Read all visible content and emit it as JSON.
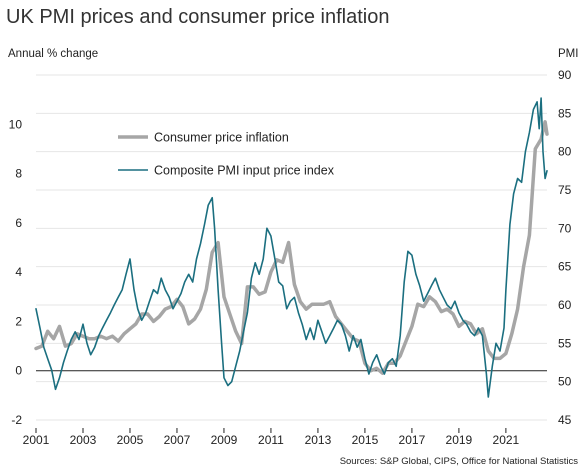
{
  "title": "UK PMI prices and consumer price inflation",
  "source": "Sources: S&P Global, CIPS, Office for National Statistics",
  "colors": {
    "cpi": "#a6a6a6",
    "pmi": "#1b6f80",
    "grid": "#e6e6e6",
    "axis": "#222222"
  },
  "chart_data": {
    "type": "line",
    "left_axis": {
      "label": "Annual % change",
      "ylim": [
        -2,
        12
      ],
      "ticks": [
        -2,
        0,
        2,
        4,
        6,
        8,
        10
      ]
    },
    "right_axis": {
      "label": "PMI",
      "ylim": [
        45,
        90
      ],
      "ticks": [
        45,
        50,
        55,
        60,
        65,
        70,
        75,
        80,
        85,
        90
      ]
    },
    "x_axis": {
      "range": [
        2001,
        2022.75
      ],
      "ticks": [
        "2001",
        "2003",
        "2005",
        "2007",
        "2009",
        "2011",
        "2013",
        "2015",
        "2017",
        "2019",
        "2021"
      ]
    },
    "grid": "horizontal",
    "legend": {
      "position": "top-center"
    },
    "series": [
      {
        "name": "Consumer price inflation",
        "axis": "left",
        "color": "#a6a6a6",
        "points": [
          [
            2001.0,
            0.9
          ],
          [
            2001.25,
            1.0
          ],
          [
            2001.5,
            1.6
          ],
          [
            2001.75,
            1.3
          ],
          [
            2002.0,
            1.8
          ],
          [
            2002.25,
            1.0
          ],
          [
            2002.5,
            1.1
          ],
          [
            2002.75,
            1.5
          ],
          [
            2003.0,
            1.4
          ],
          [
            2003.25,
            1.3
          ],
          [
            2003.5,
            1.3
          ],
          [
            2003.75,
            1.4
          ],
          [
            2004.0,
            1.3
          ],
          [
            2004.25,
            1.4
          ],
          [
            2004.5,
            1.2
          ],
          [
            2004.75,
            1.5
          ],
          [
            2005.0,
            1.7
          ],
          [
            2005.25,
            1.9
          ],
          [
            2005.5,
            2.3
          ],
          [
            2005.75,
            2.3
          ],
          [
            2006.0,
            2.0
          ],
          [
            2006.25,
            2.2
          ],
          [
            2006.5,
            2.5
          ],
          [
            2006.75,
            2.6
          ],
          [
            2007.0,
            2.9
          ],
          [
            2007.25,
            2.6
          ],
          [
            2007.5,
            1.9
          ],
          [
            2007.75,
            2.1
          ],
          [
            2008.0,
            2.5
          ],
          [
            2008.25,
            3.3
          ],
          [
            2008.5,
            4.8
          ],
          [
            2008.75,
            5.2
          ],
          [
            2009.0,
            3.0
          ],
          [
            2009.25,
            2.3
          ],
          [
            2009.5,
            1.6
          ],
          [
            2009.75,
            1.1
          ],
          [
            2010.0,
            3.4
          ],
          [
            2010.25,
            3.4
          ],
          [
            2010.5,
            3.1
          ],
          [
            2010.75,
            3.2
          ],
          [
            2011.0,
            4.0
          ],
          [
            2011.25,
            4.5
          ],
          [
            2011.5,
            4.4
          ],
          [
            2011.75,
            5.2
          ],
          [
            2012.0,
            3.5
          ],
          [
            2012.25,
            2.8
          ],
          [
            2012.5,
            2.5
          ],
          [
            2012.75,
            2.7
          ],
          [
            2013.0,
            2.7
          ],
          [
            2013.25,
            2.7
          ],
          [
            2013.5,
            2.8
          ],
          [
            2013.75,
            2.2
          ],
          [
            2014.0,
            1.9
          ],
          [
            2014.25,
            1.6
          ],
          [
            2014.5,
            1.3
          ],
          [
            2014.75,
            1.2
          ],
          [
            2015.0,
            0.3
          ],
          [
            2015.25,
            0.0
          ],
          [
            2015.5,
            0.1
          ],
          [
            2015.75,
            -0.1
          ],
          [
            2016.0,
            0.3
          ],
          [
            2016.25,
            0.3
          ],
          [
            2016.5,
            0.6
          ],
          [
            2016.75,
            1.2
          ],
          [
            2017.0,
            1.8
          ],
          [
            2017.25,
            2.7
          ],
          [
            2017.5,
            2.6
          ],
          [
            2017.75,
            3.0
          ],
          [
            2018.0,
            2.8
          ],
          [
            2018.25,
            2.4
          ],
          [
            2018.5,
            2.5
          ],
          [
            2018.75,
            2.3
          ],
          [
            2019.0,
            1.8
          ],
          [
            2019.25,
            2.0
          ],
          [
            2019.5,
            1.9
          ],
          [
            2019.75,
            1.5
          ],
          [
            2020.0,
            1.7
          ],
          [
            2020.25,
            0.8
          ],
          [
            2020.5,
            0.5
          ],
          [
            2020.75,
            0.5
          ],
          [
            2021.0,
            0.7
          ],
          [
            2021.25,
            1.5
          ],
          [
            2021.5,
            2.5
          ],
          [
            2021.75,
            4.2
          ],
          [
            2022.0,
            5.5
          ],
          [
            2022.25,
            9.0
          ],
          [
            2022.5,
            9.4
          ],
          [
            2022.67,
            10.1
          ],
          [
            2022.75,
            9.6
          ]
        ]
      },
      {
        "name": "Composite PMI input price index",
        "axis": "right",
        "color": "#1b6f80",
        "points": [
          [
            2001.0,
            59.5
          ],
          [
            2001.17,
            57.0
          ],
          [
            2001.33,
            54.5
          ],
          [
            2001.5,
            53.0
          ],
          [
            2001.67,
            51.5
          ],
          [
            2001.83,
            49.0
          ],
          [
            2002.0,
            50.5
          ],
          [
            2002.17,
            52.5
          ],
          [
            2002.33,
            54.0
          ],
          [
            2002.5,
            55.5
          ],
          [
            2002.67,
            56.5
          ],
          [
            2002.83,
            55.5
          ],
          [
            2003.0,
            57.5
          ],
          [
            2003.17,
            55.0
          ],
          [
            2003.33,
            53.5
          ],
          [
            2003.5,
            54.5
          ],
          [
            2003.67,
            56.0
          ],
          [
            2003.83,
            57.0
          ],
          [
            2004.0,
            58.0
          ],
          [
            2004.17,
            59.0
          ],
          [
            2004.33,
            60.0
          ],
          [
            2004.5,
            61.0
          ],
          [
            2004.67,
            62.0
          ],
          [
            2004.83,
            64.0
          ],
          [
            2005.0,
            66.0
          ],
          [
            2005.17,
            62.0
          ],
          [
            2005.33,
            59.5
          ],
          [
            2005.5,
            58.0
          ],
          [
            2005.67,
            59.0
          ],
          [
            2005.83,
            60.5
          ],
          [
            2006.0,
            62.0
          ],
          [
            2006.17,
            61.5
          ],
          [
            2006.33,
            63.5
          ],
          [
            2006.5,
            62.0
          ],
          [
            2006.67,
            61.0
          ],
          [
            2006.83,
            59.5
          ],
          [
            2007.0,
            60.5
          ],
          [
            2007.17,
            61.5
          ],
          [
            2007.33,
            63.0
          ],
          [
            2007.5,
            64.0
          ],
          [
            2007.67,
            63.0
          ],
          [
            2007.83,
            66.0
          ],
          [
            2008.0,
            68.0
          ],
          [
            2008.17,
            70.5
          ],
          [
            2008.33,
            73.0
          ],
          [
            2008.5,
            74.0
          ],
          [
            2008.6,
            70.0
          ],
          [
            2008.75,
            62.0
          ],
          [
            2008.9,
            55.0
          ],
          [
            2009.0,
            50.5
          ],
          [
            2009.17,
            49.5
          ],
          [
            2009.33,
            50.0
          ],
          [
            2009.5,
            52.0
          ],
          [
            2009.67,
            54.0
          ],
          [
            2009.83,
            56.5
          ],
          [
            2010.0,
            59.0
          ],
          [
            2010.17,
            63.5
          ],
          [
            2010.33,
            65.5
          ],
          [
            2010.5,
            64.0
          ],
          [
            2010.67,
            66.0
          ],
          [
            2010.83,
            70.0
          ],
          [
            2011.0,
            69.0
          ],
          [
            2011.17,
            66.0
          ],
          [
            2011.33,
            63.0
          ],
          [
            2011.5,
            62.5
          ],
          [
            2011.67,
            59.5
          ],
          [
            2011.83,
            60.5
          ],
          [
            2012.0,
            61.0
          ],
          [
            2012.17,
            59.0
          ],
          [
            2012.33,
            57.5
          ],
          [
            2012.5,
            55.5
          ],
          [
            2012.67,
            57.0
          ],
          [
            2012.83,
            55.5
          ],
          [
            2013.0,
            58.0
          ],
          [
            2013.17,
            56.5
          ],
          [
            2013.33,
            55.0
          ],
          [
            2013.5,
            56.0
          ],
          [
            2013.67,
            57.0
          ],
          [
            2013.83,
            58.0
          ],
          [
            2014.0,
            57.5
          ],
          [
            2014.17,
            56.0
          ],
          [
            2014.33,
            54.0
          ],
          [
            2014.5,
            56.0
          ],
          [
            2014.67,
            54.5
          ],
          [
            2014.83,
            55.5
          ],
          [
            2015.0,
            53.0
          ],
          [
            2015.17,
            51.0
          ],
          [
            2015.33,
            52.5
          ],
          [
            2015.5,
            53.5
          ],
          [
            2015.67,
            52.0
          ],
          [
            2015.83,
            51.0
          ],
          [
            2016.0,
            52.5
          ],
          [
            2016.17,
            53.0
          ],
          [
            2016.33,
            52.0
          ],
          [
            2016.5,
            56.0
          ],
          [
            2016.67,
            63.0
          ],
          [
            2016.83,
            67.0
          ],
          [
            2017.0,
            66.5
          ],
          [
            2017.17,
            64.0
          ],
          [
            2017.33,
            62.5
          ],
          [
            2017.5,
            60.5
          ],
          [
            2017.67,
            61.5
          ],
          [
            2017.83,
            62.5
          ],
          [
            2018.0,
            63.5
          ],
          [
            2018.17,
            62.0
          ],
          [
            2018.33,
            61.0
          ],
          [
            2018.5,
            60.0
          ],
          [
            2018.67,
            59.5
          ],
          [
            2018.83,
            60.5
          ],
          [
            2019.0,
            59.0
          ],
          [
            2019.17,
            58.0
          ],
          [
            2019.33,
            57.5
          ],
          [
            2019.5,
            56.5
          ],
          [
            2019.67,
            56.0
          ],
          [
            2019.83,
            57.0
          ],
          [
            2020.0,
            56.0
          ],
          [
            2020.17,
            51.0
          ],
          [
            2020.25,
            48.0
          ],
          [
            2020.42,
            52.0
          ],
          [
            2020.58,
            55.0
          ],
          [
            2020.75,
            54.0
          ],
          [
            2020.92,
            57.0
          ],
          [
            2021.0,
            62.0
          ],
          [
            2021.17,
            70.5
          ],
          [
            2021.33,
            74.5
          ],
          [
            2021.5,
            76.5
          ],
          [
            2021.67,
            76.0
          ],
          [
            2021.83,
            80.0
          ],
          [
            2022.0,
            82.5
          ],
          [
            2022.17,
            85.5
          ],
          [
            2022.33,
            86.5
          ],
          [
            2022.42,
            83.0
          ],
          [
            2022.5,
            87.0
          ],
          [
            2022.58,
            80.0
          ],
          [
            2022.67,
            76.5
          ],
          [
            2022.75,
            77.5
          ]
        ]
      }
    ]
  }
}
